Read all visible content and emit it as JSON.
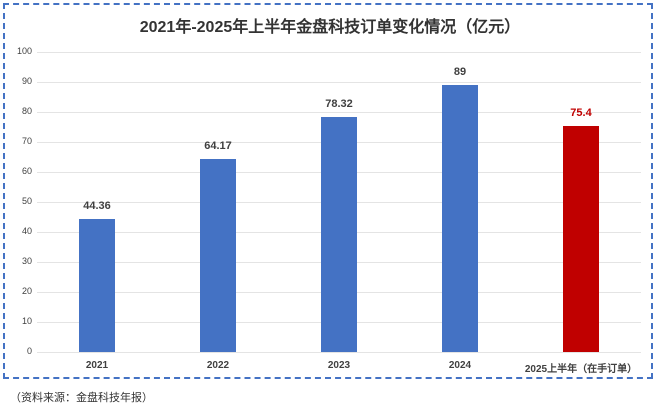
{
  "chart_data": {
    "type": "bar",
    "title": "2021年-2025年上半年金盘科技订单变化情况（亿元）",
    "categories": [
      "2021",
      "2022",
      "2023",
      "2024",
      "2025上半年（在手订单）"
    ],
    "values": [
      44.36,
      64.17,
      78.32,
      89,
      75.4
    ],
    "value_labels": [
      "44.36",
      "64.17",
      "78.32",
      "89",
      "75.4"
    ],
    "bar_colors": [
      "#4472c4",
      "#4472c4",
      "#4472c4",
      "#4472c4",
      "#c00000"
    ],
    "label_colors": [
      "#404040",
      "#404040",
      "#404040",
      "#404040",
      "#c00000"
    ],
    "xlabel": "",
    "ylabel": "",
    "ylim": [
      0,
      100
    ],
    "yticks": [
      "0",
      "10",
      "20",
      "30",
      "40",
      "50",
      "60",
      "70",
      "80",
      "90",
      "100"
    ],
    "grid": true,
    "legend": null
  },
  "footer": {
    "source": "（资料来源：金盘科技年报）"
  }
}
